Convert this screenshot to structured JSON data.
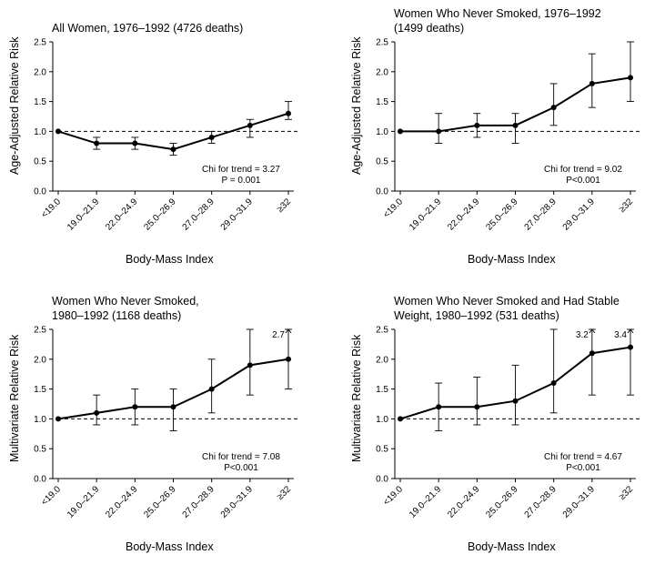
{
  "chart_data": [
    {
      "type": "line",
      "title": "All Women, 1976–1992 (4726 deaths)",
      "xlabel": "Body-Mass Index",
      "ylabel": "Age-Adjusted Relative Risk",
      "categories": [
        "<19.0",
        "19.0–21.9",
        "22.0–24.9",
        "25.0–26.9",
        "27.0–28.9",
        "29.0–31.9",
        "≥32"
      ],
      "series": [
        {
          "values": [
            1.0,
            0.8,
            0.8,
            0.7,
            0.9,
            1.1,
            1.3
          ],
          "ci_low": [
            1.0,
            0.7,
            0.7,
            0.6,
            0.8,
            0.9,
            1.2
          ],
          "ci_high": [
            1.0,
            0.9,
            0.9,
            0.8,
            1.0,
            1.2,
            1.5
          ]
        }
      ],
      "ylim": [
        0,
        2.5
      ],
      "yticks": [
        "0.0",
        "0.5",
        "1.0",
        "1.5",
        "2.0",
        "2.5"
      ],
      "reference_line": 1.0,
      "stat_lines": [
        "Chi for trend = 3.27",
        "P = 0.001"
      ],
      "annotations": []
    },
    {
      "type": "line",
      "title": "Women Who Never Smoked, 1976–1992\n(1499 deaths)",
      "xlabel": "Body-Mass Index",
      "ylabel": "Age-Adjusted Relative Risk",
      "categories": [
        "<19.0",
        "19.0–21.9",
        "22.0–24.9",
        "25.0–26.9",
        "27.0–28.9",
        "29.0–31.9",
        "≥32"
      ],
      "series": [
        {
          "values": [
            1.0,
            1.0,
            1.1,
            1.1,
            1.4,
            1.8,
            1.9
          ],
          "ci_low": [
            1.0,
            0.8,
            0.9,
            0.8,
            1.1,
            1.4,
            1.5
          ],
          "ci_high": [
            1.0,
            1.3,
            1.3,
            1.3,
            1.8,
            2.3,
            2.5
          ]
        }
      ],
      "ylim": [
        0,
        2.5
      ],
      "yticks": [
        "0.0",
        "0.5",
        "1.0",
        "1.5",
        "2.0",
        "2.5"
      ],
      "reference_line": 1.0,
      "stat_lines": [
        "Chi for trend = 9.02",
        "P<0.001"
      ],
      "annotations": []
    },
    {
      "type": "line",
      "title": "Women Who Never Smoked,\n1980–1992 (1168 deaths)",
      "xlabel": "Body-Mass Index",
      "ylabel": "Multivariate Relative Risk",
      "categories": [
        "<19.0",
        "19.0–21.9",
        "22.0–24.9",
        "25.0–26.9",
        "27.0–28.9",
        "29.0–31.9",
        "≥32"
      ],
      "series": [
        {
          "values": [
            1.0,
            1.1,
            1.2,
            1.2,
            1.5,
            1.9,
            2.0
          ],
          "ci_low": [
            1.0,
            0.9,
            0.9,
            0.8,
            1.1,
            1.4,
            1.5
          ],
          "ci_high": [
            1.0,
            1.4,
            1.5,
            1.5,
            2.0,
            2.5,
            2.5
          ]
        }
      ],
      "ylim": [
        0,
        2.5
      ],
      "yticks": [
        "0.0",
        "0.5",
        "1.0",
        "1.5",
        "2.0",
        "2.5"
      ],
      "reference_line": 1.0,
      "stat_lines": [
        "Chi for trend = 7.08",
        "P<0.001"
      ],
      "annotations": [
        {
          "category_index": 6,
          "text": "2.7"
        }
      ]
    },
    {
      "type": "line",
      "title": "Women Who Never Smoked and Had Stable\nWeight, 1980–1992 (531 deaths)",
      "xlabel": "Body-Mass Index",
      "ylabel": "Multivariate Relative Risk",
      "categories": [
        "<19.0",
        "19.0–21.9",
        "22.0–24.9",
        "25.0–26.9",
        "27.0–28.9",
        "29.0–31.9",
        "≥32"
      ],
      "series": [
        {
          "values": [
            1.0,
            1.2,
            1.2,
            1.3,
            1.6,
            2.1,
            2.2
          ],
          "ci_low": [
            1.0,
            0.8,
            0.9,
            0.9,
            1.1,
            1.4,
            1.4
          ],
          "ci_high": [
            1.0,
            1.6,
            1.7,
            1.9,
            2.5,
            2.5,
            2.5
          ]
        }
      ],
      "ylim": [
        0,
        2.5
      ],
      "yticks": [
        "0.0",
        "0.5",
        "1.0",
        "1.5",
        "2.0",
        "2.5"
      ],
      "reference_line": 1.0,
      "stat_lines": [
        "Chi for trend = 4.67",
        "P<0.001"
      ],
      "annotations": [
        {
          "category_index": 5,
          "text": "3.2"
        },
        {
          "category_index": 6,
          "text": "3.4"
        }
      ]
    }
  ]
}
